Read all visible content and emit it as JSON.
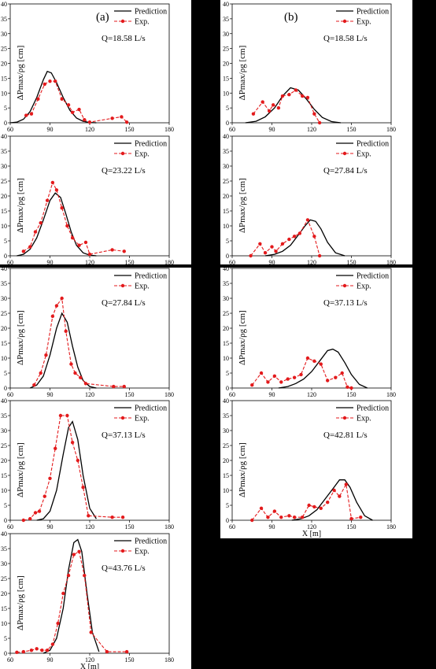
{
  "panels": [
    {
      "id": "a",
      "label": "(a)",
      "x_axis_title": "X [m]"
    },
    {
      "id": "b",
      "label": "(b)",
      "x_axis_title": "X [m]"
    }
  ],
  "legend": {
    "prediction": "Prediction",
    "experiment": "Exp."
  },
  "y_axis_label": "ΔPmax/ρg [cm]",
  "colors": {
    "prediction": "#000000",
    "experiment": "#e31a1c",
    "background": "#000000",
    "panel": "#ffffff"
  },
  "chart_data": [
    {
      "type": "line",
      "panel": "a",
      "flow_label": "Q=18.58 L/s",
      "xlim": [
        60,
        180
      ],
      "ylim": [
        0,
        40
      ],
      "xticks": [
        60,
        90,
        120,
        150,
        180
      ],
      "yticks": [
        0,
        5,
        10,
        15,
        20,
        25,
        30,
        35,
        40
      ],
      "grid": false,
      "series": [
        {
          "name": "Prediction",
          "style": "solid",
          "x": [
            60,
            65,
            70,
            75,
            80,
            85,
            88,
            91,
            95,
            100,
            105,
            110,
            115,
            120,
            125
          ],
          "y": [
            0,
            0.2,
            1.2,
            3.8,
            8.5,
            14.5,
            17.3,
            16.8,
            13.5,
            8.5,
            4.2,
            1.6,
            0.5,
            0.1,
            0
          ]
        },
        {
          "name": "Exp.",
          "style": "dashed-marker",
          "x": [
            72,
            76,
            81,
            86,
            90,
            94,
            99,
            104,
            107,
            112,
            116,
            120,
            137,
            144,
            148
          ],
          "y": [
            2.5,
            3,
            8,
            13,
            14,
            14,
            8,
            6,
            3.5,
            4.5,
            1,
            0.2,
            1.5,
            2,
            0.2
          ]
        }
      ]
    },
    {
      "type": "line",
      "panel": "a",
      "flow_label": "Q=23.22 L/s",
      "xlim": [
        60,
        180
      ],
      "ylim": [
        0,
        40
      ],
      "xticks": [
        60,
        90,
        120,
        150,
        180
      ],
      "yticks": [
        0,
        5,
        10,
        15,
        20,
        25,
        30,
        35,
        40
      ],
      "grid": false,
      "series": [
        {
          "name": "Prediction",
          "style": "solid",
          "x": [
            65,
            70,
            75,
            80,
            85,
            90,
            94,
            98,
            102,
            106,
            110,
            115,
            120,
            125
          ],
          "y": [
            0,
            0.5,
            2.2,
            6,
            12,
            18.5,
            21,
            19.5,
            14,
            8,
            3.5,
            1,
            0.2,
            0
          ]
        },
        {
          "name": "Exp.",
          "style": "dashed-marker",
          "x": [
            70,
            75,
            79,
            83,
            88,
            92,
            95,
            99,
            103,
            107,
            112,
            117,
            120,
            137,
            146
          ],
          "y": [
            1.5,
            3,
            8,
            11,
            18.5,
            24.5,
            22,
            16,
            10,
            6,
            3.5,
            4.5,
            0.5,
            2,
            1.5
          ]
        }
      ]
    },
    {
      "type": "line",
      "panel": "a",
      "flow_label": "Q=27.84 L/s",
      "xlim": [
        60,
        180
      ],
      "ylim": [
        0,
        40
      ],
      "xticks": [
        60,
        90,
        120,
        150,
        180
      ],
      "yticks": [
        0,
        5,
        10,
        15,
        20,
        25,
        30,
        35,
        40
      ],
      "grid": false,
      "series": [
        {
          "name": "Prediction",
          "style": "solid",
          "x": [
            75,
            80,
            85,
            90,
            95,
            99,
            103,
            107,
            111,
            115,
            120,
            125
          ],
          "y": [
            0,
            1,
            4,
            11,
            20,
            25,
            22,
            14,
            7,
            2.5,
            0.5,
            0
          ]
        },
        {
          "name": "Exp.",
          "style": "dashed-marker",
          "x": [
            78,
            83,
            87,
            92,
            95,
            99,
            102,
            106,
            109,
            113,
            117,
            138,
            146
          ],
          "y": [
            1,
            5,
            11,
            24,
            27.5,
            30,
            19,
            8,
            5,
            3.5,
            1.5,
            0.5,
            0.5
          ]
        }
      ]
    },
    {
      "type": "line",
      "panel": "a",
      "flow_label": "Q=37.13 L/s",
      "xlim": [
        60,
        180
      ],
      "ylim": [
        0,
        40
      ],
      "xticks": [
        60,
        90,
        120,
        150,
        180
      ],
      "yticks": [
        0,
        5,
        10,
        15,
        20,
        25,
        30,
        35,
        40
      ],
      "grid": false,
      "series": [
        {
          "name": "Prediction",
          "style": "solid",
          "x": [
            80,
            85,
            90,
            95,
            100,
            104,
            107,
            111,
            115,
            120,
            125
          ],
          "y": [
            0,
            0.5,
            3,
            10,
            22,
            31,
            33,
            27,
            15,
            4,
            0.5
          ]
        },
        {
          "name": "Exp.",
          "style": "dashed-marker",
          "x": [
            70,
            75,
            79,
            82,
            86,
            90,
            94,
            98,
            103,
            107,
            111,
            115,
            119,
            137,
            145
          ],
          "y": [
            0,
            0.5,
            2.5,
            3,
            8,
            14,
            24,
            35,
            35,
            26,
            20,
            11,
            1.5,
            1,
            1
          ]
        }
      ]
    },
    {
      "type": "line",
      "panel": "a",
      "flow_label": "Q=43.76 L/s",
      "xlim": [
        60,
        180
      ],
      "ylim": [
        0,
        40
      ],
      "xticks": [
        60,
        90,
        120,
        150,
        180
      ],
      "yticks": [
        0,
        5,
        10,
        15,
        20,
        25,
        30,
        35,
        40
      ],
      "grid": false,
      "series": [
        {
          "name": "Prediction",
          "style": "solid",
          "x": [
            85,
            90,
            95,
            100,
            104,
            108,
            111,
            114,
            118,
            122,
            127
          ],
          "y": [
            0,
            1,
            5,
            15,
            28,
            37,
            38,
            34,
            20,
            7,
            0.5
          ]
        },
        {
          "name": "Exp.",
          "style": "dashed-marker",
          "x": [
            65,
            70,
            76,
            80,
            84,
            88,
            92,
            96,
            100,
            104,
            108,
            112,
            116,
            121,
            133,
            148
          ],
          "y": [
            0.3,
            0.5,
            1,
            1.5,
            1,
            1,
            3,
            10,
            20,
            26,
            33,
            34,
            26,
            7,
            0.5,
            0.5
          ]
        }
      ]
    },
    {
      "type": "line",
      "panel": "b",
      "flow_label": "Q=18.58 L/s",
      "xlim": [
        60,
        180
      ],
      "ylim": [
        0,
        40
      ],
      "xticks": [
        60,
        90,
        120,
        150,
        180
      ],
      "yticks": [
        0,
        5,
        10,
        15,
        20,
        25,
        30,
        35,
        40
      ],
      "grid": false,
      "series": [
        {
          "name": "Prediction",
          "style": "solid",
          "x": [
            70,
            78,
            85,
            92,
            98,
            104,
            110,
            116,
            122,
            128,
            135,
            142
          ],
          "y": [
            0,
            0.5,
            2,
            5,
            9,
            11.8,
            11,
            8,
            4.5,
            1.8,
            0.4,
            0
          ]
        },
        {
          "name": "Exp.",
          "style": "dashed-marker",
          "x": [
            76,
            83,
            88,
            91,
            95,
            98,
            103,
            108,
            113,
            117,
            122,
            126
          ],
          "y": [
            3,
            7,
            4,
            6,
            5,
            9,
            9.5,
            11,
            9,
            8.5,
            3,
            0
          ]
        }
      ]
    },
    {
      "type": "line",
      "panel": "b",
      "flow_label": "Q=27.84 L/s",
      "xlim": [
        60,
        180
      ],
      "ylim": [
        0,
        40
      ],
      "xticks": [
        60,
        90,
        120,
        150,
        180
      ],
      "yticks": [
        0,
        5,
        10,
        15,
        20,
        25,
        30,
        35,
        40
      ],
      "grid": false,
      "series": [
        {
          "name": "Prediction",
          "style": "solid",
          "x": [
            85,
            92,
            98,
            104,
            110,
            115,
            119,
            123,
            127,
            132,
            138,
            145
          ],
          "y": [
            0,
            0.5,
            1.5,
            3.5,
            7,
            10,
            12,
            11.5,
            9,
            4.5,
            1,
            0
          ]
        },
        {
          "name": "Exp.",
          "style": "dashed-marker",
          "x": [
            74,
            81,
            85,
            90,
            93,
            98,
            103,
            107,
            111,
            117,
            122,
            126
          ],
          "y": [
            0,
            4,
            1,
            3,
            1.5,
            4,
            5.5,
            6.5,
            7.5,
            12,
            6.5,
            0
          ]
        }
      ]
    },
    {
      "type": "line",
      "panel": "b",
      "flow_label": "Q=37.13 L/s",
      "xlim": [
        60,
        180
      ],
      "ylim": [
        0,
        40
      ],
      "xticks": [
        60,
        90,
        120,
        150,
        180
      ],
      "yticks": [
        0,
        5,
        10,
        15,
        20,
        25,
        30,
        35,
        40
      ],
      "grid": false,
      "series": [
        {
          "name": "Prediction",
          "style": "solid",
          "x": [
            95,
            102,
            108,
            114,
            120,
            126,
            132,
            136,
            140,
            145,
            150,
            156,
            162
          ],
          "y": [
            0,
            0.5,
            1.5,
            3,
            5.5,
            9,
            12.5,
            13,
            12,
            8.5,
            4.5,
            1.2,
            0
          ]
        },
        {
          "name": "Exp.",
          "style": "dashed-marker",
          "x": [
            75,
            82,
            87,
            92,
            97,
            102,
            107,
            112,
            117,
            122,
            127,
            132,
            138,
            143,
            147,
            150
          ],
          "y": [
            1,
            5,
            2,
            4,
            2,
            3,
            3.5,
            4.5,
            10,
            9,
            8,
            2.5,
            3.5,
            5,
            0.3,
            0
          ]
        }
      ]
    },
    {
      "type": "line",
      "panel": "b",
      "flow_label": "Q=42.81 L/s",
      "xlim": [
        60,
        180
      ],
      "ylim": [
        0,
        40
      ],
      "xticks": [
        60,
        90,
        120,
        150,
        180
      ],
      "yticks": [
        0,
        5,
        10,
        15,
        20,
        25,
        30,
        35,
        40
      ],
      "grid": false,
      "series": [
        {
          "name": "Prediction",
          "style": "solid",
          "x": [
            105,
            112,
            118,
            124,
            130,
            136,
            141,
            145,
            149,
            154,
            160,
            166
          ],
          "y": [
            0,
            0.5,
            1.5,
            3.5,
            7,
            10.5,
            13.5,
            13.5,
            11,
            6,
            1.5,
            0
          ]
        },
        {
          "name": "Exp.",
          "style": "dashed-marker",
          "x": [
            75,
            82,
            87,
            92,
            97,
            103,
            107,
            113,
            118,
            122,
            127,
            132,
            137,
            141,
            146,
            150,
            157
          ],
          "y": [
            0,
            4,
            1,
            3,
            1,
            1.5,
            1,
            1,
            5,
            4.5,
            4,
            6,
            10,
            8,
            12,
            0.5,
            1
          ]
        }
      ]
    }
  ]
}
